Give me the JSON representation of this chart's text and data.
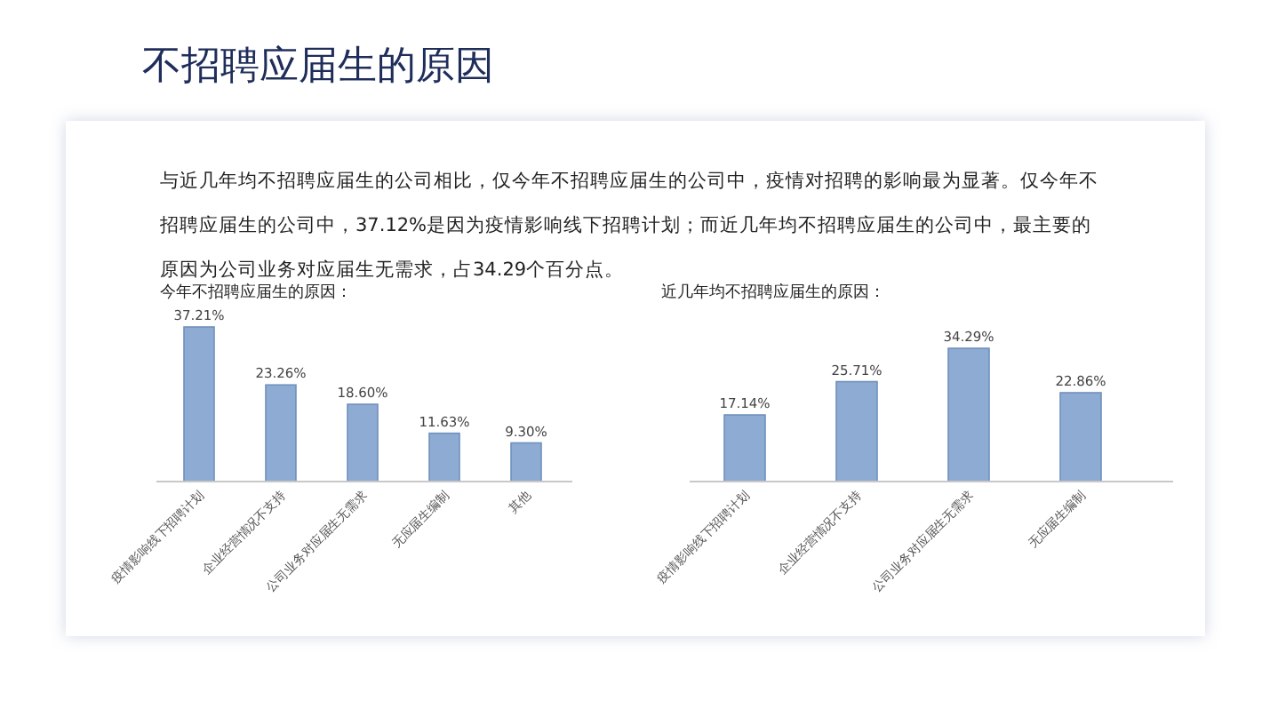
{
  "chart_data": [
    {
      "type": "other",
      "title": "不招聘应届生的原因",
      "annotations": [
        "与近几年均不招聘应届生的公司相比，仅今年不招聘应届生的公司中，疫情对招聘的影响最为显著。仅今年不招聘应届生的公司中，37.12%是因为疫情影响线下招聘计划；而近几年均不招聘应届生的公司中，最主要的原因为公司业务对应届生无需求，占34.29个百分点。"
      ]
    },
    {
      "type": "bar",
      "title": "今年不招聘应届生的原因：",
      "categories": [
        "疫情影响线下招聘计划",
        "企业经营情况不支持",
        "公司业务对应届生无需求",
        "无应届生编制",
        "其他"
      ],
      "values": [
        37.21,
        23.26,
        18.6,
        11.63,
        9.3
      ],
      "value_labels": [
        "37.21%",
        "23.26%",
        "18.60%",
        "11.63%",
        "9.30%"
      ],
      "color": "#8eabd3"
    },
    {
      "type": "bar",
      "title": "近几年均不招聘应届生的原因：",
      "categories": [
        "疫情影响线下招聘计划",
        "企业经营情况不支持",
        "公司业务对应届生无需求",
        "无应届生编制"
      ],
      "values": [
        17.14,
        25.71,
        34.29,
        22.86
      ],
      "value_labels": [
        "17.14%",
        "25.71%",
        "34.29%",
        "22.86%"
      ],
      "color": "#8eabd3"
    }
  ]
}
